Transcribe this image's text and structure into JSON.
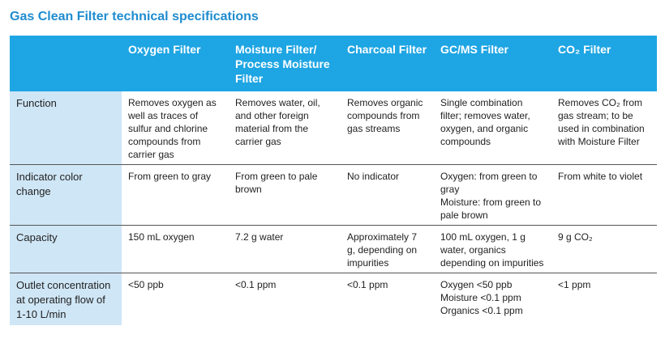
{
  "title": "Gas Clean Filter technical specifications",
  "table": {
    "columns": [
      "Oxygen Filter",
      "Moisture Filter/ Process Moisture Filter",
      "Charcoal Filter",
      "GC/MS Filter",
      "CO₂ Filter"
    ],
    "rows": [
      {
        "label": "Function",
        "cells": [
          "Removes oxygen as well as traces of sulfur and chlorine compounds from carrier gas",
          "Removes water, oil, and other foreign material from the carrier gas",
          "Removes organic compounds from gas streams",
          "Single combination filter; removes water, oxygen, and organic compounds",
          "Removes CO₂ from gas stream; to be used in combination with Moisture Filter"
        ]
      },
      {
        "label": "Indicator color change",
        "cells": [
          "From green to gray",
          "From green to pale brown",
          "No indicator",
          [
            "Oxygen: from green to gray",
            "Moisture: from green to pale brown"
          ],
          "From white to violet"
        ]
      },
      {
        "label": "Capacity",
        "cells": [
          "150 mL oxygen",
          "7.2 g water",
          "Approximately 7 g, depending on impurities",
          "100 mL oxygen, 1 g water, organics depending on impurities",
          "9 g CO₂"
        ]
      },
      {
        "label": "Outlet concentration at operating flow of 1-10 L/min",
        "cells": [
          "<50 ppb",
          "<0.1 ppm",
          "<0.1 ppm",
          [
            "Oxygen <50 ppb",
            "Moisture <0.1 ppm",
            "Organics <0.1 ppm"
          ],
          "<1 ppm"
        ]
      }
    ]
  }
}
